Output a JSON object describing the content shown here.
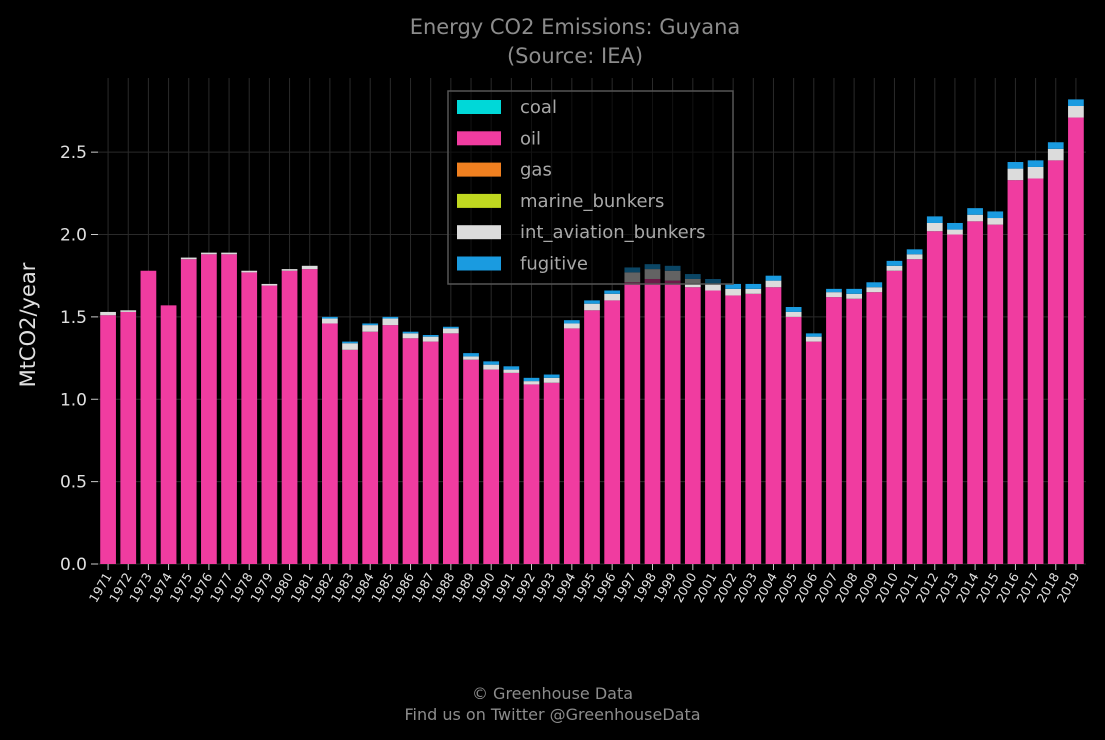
{
  "chart_data": {
    "type": "bar",
    "stacked": true,
    "title": "Energy CO2 Emissions: Guyana",
    "subtitle": "(Source: IEA)",
    "ylabel": "MtCO2/year",
    "ylim": [
      0,
      2.95
    ],
    "yticks": [
      "0.0",
      "0.5",
      "1.0",
      "1.5",
      "2.0",
      "2.5"
    ],
    "grid": true,
    "legend_position": "top-center",
    "categories": [
      "1971",
      "1972",
      "1973",
      "1974",
      "1975",
      "1976",
      "1977",
      "1978",
      "1979",
      "1980",
      "1981",
      "1982",
      "1983",
      "1984",
      "1985",
      "1986",
      "1987",
      "1988",
      "1989",
      "1990",
      "1991",
      "1992",
      "1993",
      "1994",
      "1995",
      "1996",
      "1997",
      "1998",
      "1999",
      "2000",
      "2001",
      "2002",
      "2003",
      "2004",
      "2005",
      "2006",
      "2007",
      "2008",
      "2009",
      "2010",
      "2011",
      "2012",
      "2013",
      "2014",
      "2015",
      "2016",
      "2017",
      "2018",
      "2019"
    ],
    "series": [
      {
        "name": "coal",
        "color": "#00d8d8",
        "values": [
          0,
          0,
          0,
          0,
          0,
          0,
          0,
          0,
          0,
          0,
          0,
          0,
          0,
          0,
          0,
          0,
          0,
          0,
          0,
          0,
          0,
          0,
          0,
          0,
          0,
          0,
          0,
          0,
          0,
          0,
          0,
          0,
          0,
          0,
          0,
          0,
          0,
          0,
          0,
          0,
          0,
          0,
          0,
          0,
          0,
          0,
          0,
          0,
          0
        ]
      },
      {
        "name": "oil",
        "color": "#f03ca0",
        "values": [
          1.51,
          1.53,
          1.78,
          1.57,
          1.85,
          1.88,
          1.88,
          1.77,
          1.69,
          1.78,
          1.79,
          1.46,
          1.3,
          1.41,
          1.45,
          1.37,
          1.35,
          1.4,
          1.24,
          1.18,
          1.16,
          1.09,
          1.1,
          1.43,
          1.54,
          1.6,
          1.71,
          1.73,
          1.72,
          1.68,
          1.66,
          1.63,
          1.64,
          1.68,
          1.5,
          1.35,
          1.62,
          1.61,
          1.65,
          1.78,
          1.85,
          2.02,
          2.0,
          2.08,
          2.06,
          2.33,
          2.34,
          2.45,
          2.71
        ]
      },
      {
        "name": "gas",
        "color": "#f08020",
        "values": [
          0,
          0,
          0,
          0,
          0,
          0,
          0,
          0,
          0,
          0,
          0,
          0,
          0,
          0,
          0,
          0,
          0,
          0,
          0,
          0,
          0,
          0,
          0,
          0,
          0,
          0,
          0,
          0,
          0,
          0,
          0,
          0,
          0,
          0,
          0,
          0,
          0,
          0,
          0,
          0,
          0,
          0,
          0,
          0,
          0,
          0,
          0,
          0,
          0
        ]
      },
      {
        "name": "marine_bunkers",
        "color": "#c0d820",
        "values": [
          0,
          0,
          0,
          0,
          0,
          0,
          0,
          0,
          0,
          0,
          0,
          0,
          0,
          0,
          0,
          0,
          0,
          0,
          0,
          0,
          0,
          0,
          0,
          0,
          0,
          0,
          0,
          0,
          0,
          0,
          0,
          0,
          0,
          0,
          0,
          0,
          0,
          0,
          0,
          0,
          0,
          0,
          0,
          0,
          0,
          0,
          0,
          0,
          0
        ]
      },
      {
        "name": "int_aviation_bunkers",
        "color": "#dcdcdc",
        "values": [
          0.02,
          0.01,
          0.0,
          0.0,
          0.01,
          0.01,
          0.01,
          0.01,
          0.01,
          0.01,
          0.02,
          0.03,
          0.04,
          0.04,
          0.04,
          0.03,
          0.03,
          0.03,
          0.02,
          0.03,
          0.02,
          0.02,
          0.03,
          0.03,
          0.04,
          0.04,
          0.06,
          0.06,
          0.06,
          0.05,
          0.04,
          0.04,
          0.03,
          0.04,
          0.03,
          0.03,
          0.03,
          0.03,
          0.03,
          0.03,
          0.03,
          0.05,
          0.03,
          0.04,
          0.04,
          0.07,
          0.07,
          0.07,
          0.07
        ]
      },
      {
        "name": "fugitive",
        "color": "#1a9be0",
        "values": [
          0.0,
          0.0,
          0.0,
          0.0,
          0.0,
          0.0,
          0.0,
          0.0,
          0.0,
          0.0,
          0.0,
          0.01,
          0.01,
          0.01,
          0.01,
          0.01,
          0.01,
          0.01,
          0.02,
          0.02,
          0.02,
          0.02,
          0.02,
          0.02,
          0.02,
          0.02,
          0.03,
          0.03,
          0.03,
          0.03,
          0.03,
          0.03,
          0.03,
          0.03,
          0.03,
          0.02,
          0.02,
          0.03,
          0.03,
          0.03,
          0.03,
          0.04,
          0.04,
          0.04,
          0.04,
          0.04,
          0.04,
          0.04,
          0.04
        ]
      }
    ]
  },
  "footer": {
    "line1": "© Greenhouse Data",
    "line2": "Find us on Twitter @GreenhouseData"
  }
}
